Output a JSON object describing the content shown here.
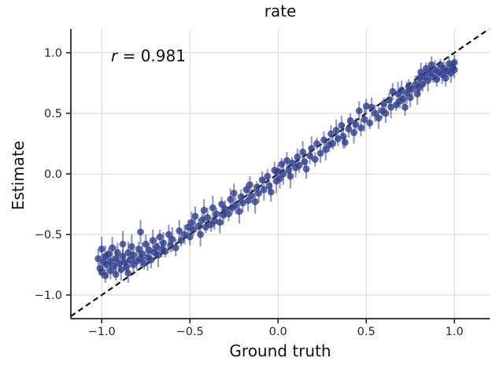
{
  "figure": {
    "title": "rate",
    "xlabel": "Ground truth",
    "ylabel": "Estimate",
    "annotation_var": "r",
    "annotation_rest": " = 0.981"
  },
  "chart_data": {
    "type": "scatter",
    "title": "rate",
    "xlabel": "Ground truth",
    "ylabel": "Estimate",
    "correlation_label": "r = 0.981",
    "r": 0.981,
    "grid": true,
    "legend": false,
    "xlim": [
      -1.175,
      1.2
    ],
    "ylim": [
      -1.195,
      1.195
    ],
    "xticks": {
      "values": [
        -1.0,
        -0.5,
        0.0,
        0.5,
        1.0
      ],
      "labels": [
        "−1.0",
        "−0.5",
        "0.0",
        "0.5",
        "1.0"
      ]
    },
    "yticks": {
      "values": [
        -1.0,
        -0.5,
        0.0,
        0.5,
        1.0
      ],
      "labels": [
        "−1.0",
        "−0.5",
        "0.0",
        "0.5",
        "1.0"
      ]
    },
    "identity_line": {
      "style": "dashed",
      "color": "#141414",
      "from": -1.175,
      "to": 1.195
    },
    "marker": {
      "shape": "circle",
      "color": "#2b3a8a",
      "opacity": 0.78,
      "radius": 4.4
    },
    "error_bars": {
      "color": "#2b3a8a",
      "opacity": 0.5,
      "width": 2.2
    },
    "grid_color": "#d9d9d9",
    "spine_color": "#262626",
    "n_points": 176,
    "points": [
      [
        -1.02,
        -0.7,
        0.08
      ],
      [
        -1.01,
        -0.78,
        0.06
      ],
      [
        -1.0,
        -0.62,
        0.1
      ],
      [
        -1.0,
        -0.81,
        0.05
      ],
      [
        -0.99,
        -0.73,
        0.07
      ],
      [
        -0.98,
        -0.68,
        0.09
      ],
      [
        -0.98,
        -0.84,
        0.06
      ],
      [
        -0.97,
        -0.75,
        0.11
      ],
      [
        -0.96,
        -0.66,
        0.05
      ],
      [
        -0.95,
        -0.72,
        0.08
      ],
      [
        -0.95,
        -0.8,
        0.07
      ],
      [
        -0.94,
        -0.61,
        0.09
      ],
      [
        -0.93,
        -0.76,
        0.06
      ],
      [
        -0.92,
        -0.7,
        0.1
      ],
      [
        -0.92,
        -0.83,
        0.05
      ],
      [
        -0.91,
        -0.65,
        0.08
      ],
      [
        -0.9,
        -0.74,
        0.07
      ],
      [
        -0.89,
        -0.79,
        0.09
      ],
      [
        -0.88,
        -0.68,
        0.06
      ],
      [
        -0.88,
        -0.58,
        0.11
      ],
      [
        -0.87,
        -0.73,
        0.07
      ],
      [
        -0.86,
        -0.77,
        0.05
      ],
      [
        -0.85,
        -0.65,
        0.09
      ],
      [
        -0.85,
        -0.82,
        0.08
      ],
      [
        -0.84,
        -0.71,
        0.06
      ],
      [
        -0.83,
        -0.6,
        0.1
      ],
      [
        -0.82,
        -0.75,
        0.07
      ],
      [
        -0.82,
        -0.67,
        0.05
      ],
      [
        -0.8,
        -0.72,
        0.08
      ],
      [
        -0.79,
        -0.62,
        0.06
      ],
      [
        -0.78,
        -0.48,
        0.1
      ],
      [
        -0.78,
        -0.7,
        0.07
      ],
      [
        -0.77,
        -0.66,
        0.09
      ],
      [
        -0.76,
        -0.74,
        0.05
      ],
      [
        -0.75,
        -0.58,
        0.08
      ],
      [
        -0.74,
        -0.69,
        0.11
      ],
      [
        -0.73,
        -0.63,
        0.06
      ],
      [
        -0.72,
        -0.71,
        0.07
      ],
      [
        -0.71,
        -0.55,
        0.09
      ],
      [
        -0.7,
        -0.65,
        0.05
      ],
      [
        -0.69,
        -0.6,
        0.08
      ],
      [
        -0.68,
        -0.67,
        0.1
      ],
      [
        -0.67,
        -0.52,
        0.06
      ],
      [
        -0.66,
        -0.62,
        0.07
      ],
      [
        -0.65,
        -0.57,
        0.09
      ],
      [
        -0.64,
        -0.64,
        0.05
      ],
      [
        -0.62,
        -0.5,
        0.08
      ],
      [
        -0.61,
        -0.59,
        0.06
      ],
      [
        -0.6,
        -0.54,
        0.1
      ],
      [
        -0.58,
        -0.61,
        0.07
      ],
      [
        -0.56,
        -0.47,
        0.09
      ],
      [
        -0.55,
        -0.55,
        0.05
      ],
      [
        -0.53,
        -0.5,
        0.08
      ],
      [
        -0.51,
        -0.44,
        0.06
      ],
      [
        -0.5,
        -0.52,
        0.07
      ],
      [
        -0.49,
        -0.4,
        0.09
      ],
      [
        -0.48,
        -0.46,
        0.05
      ],
      [
        -0.47,
        -0.35,
        0.08
      ],
      [
        -0.45,
        -0.43,
        0.06
      ],
      [
        -0.44,
        -0.5,
        0.1
      ],
      [
        -0.43,
        -0.38,
        0.07
      ],
      [
        -0.42,
        -0.3,
        0.09
      ],
      [
        -0.41,
        -0.44,
        0.05
      ],
      [
        -0.4,
        -0.36,
        0.08
      ],
      [
        -0.38,
        -0.42,
        0.06
      ],
      [
        -0.37,
        -0.28,
        0.1
      ],
      [
        -0.36,
        -0.39,
        0.07
      ],
      [
        -0.35,
        -0.33,
        0.05
      ],
      [
        -0.33,
        -0.4,
        0.09
      ],
      [
        -0.32,
        -0.25,
        0.06
      ],
      [
        -0.31,
        -0.34,
        0.08
      ],
      [
        -0.3,
        -0.29,
        0.07
      ],
      [
        -0.28,
        -0.33,
        0.06
      ],
      [
        -0.27,
        -0.21,
        0.09
      ],
      [
        -0.26,
        -0.28,
        0.05
      ],
      [
        -0.25,
        -0.16,
        0.08
      ],
      [
        -0.24,
        -0.26,
        0.07
      ],
      [
        -0.22,
        -0.31,
        0.1
      ],
      [
        -0.21,
        -0.19,
        0.06
      ],
      [
        -0.2,
        -0.24,
        0.08
      ],
      [
        -0.18,
        -0.13,
        0.05
      ],
      [
        -0.17,
        -0.22,
        0.09
      ],
      [
        -0.16,
        -0.09,
        0.07
      ],
      [
        -0.15,
        -0.18,
        0.06
      ],
      [
        -0.13,
        -0.23,
        0.1
      ],
      [
        -0.12,
        -0.11,
        0.05
      ],
      [
        -0.11,
        -0.16,
        0.08
      ],
      [
        -0.09,
        -0.05,
        0.07
      ],
      [
        -0.08,
        -0.13,
        0.09
      ],
      [
        -0.06,
        -0.02,
        0.06
      ],
      [
        -0.05,
        -0.1,
        0.05
      ],
      [
        -0.04,
        -0.15,
        0.08
      ],
      [
        -0.02,
        0.03,
        0.07
      ],
      [
        -0.01,
        -0.06,
        0.1
      ],
      [
        0.0,
        0.02,
        0.06
      ],
      [
        0.01,
        -0.04,
        0.08
      ],
      [
        0.02,
        0.08,
        0.05
      ],
      [
        0.03,
        0.0,
        0.09
      ],
      [
        0.05,
        0.11,
        0.07
      ],
      [
        0.06,
        0.03,
        0.06
      ],
      [
        0.07,
        -0.02,
        0.1
      ],
      [
        0.08,
        0.09,
        0.05
      ],
      [
        0.1,
        0.05,
        0.08
      ],
      [
        0.11,
        0.14,
        0.07
      ],
      [
        0.12,
        0.07,
        0.06
      ],
      [
        0.14,
        0.18,
        0.09
      ],
      [
        0.15,
        0.1,
        0.05
      ],
      [
        0.16,
        0.04,
        0.08
      ],
      [
        0.18,
        0.15,
        0.07
      ],
      [
        0.19,
        0.21,
        0.1
      ],
      [
        0.21,
        0.12,
        0.06
      ],
      [
        0.22,
        0.25,
        0.05
      ],
      [
        0.24,
        0.17,
        0.08
      ],
      [
        0.26,
        0.28,
        0.07
      ],
      [
        0.27,
        0.2,
        0.09
      ],
      [
        0.29,
        0.24,
        0.06
      ],
      [
        0.3,
        0.33,
        0.07
      ],
      [
        0.31,
        0.25,
        0.05
      ],
      [
        0.33,
        0.36,
        0.09
      ],
      [
        0.34,
        0.29,
        0.06
      ],
      [
        0.36,
        0.4,
        0.08
      ],
      [
        0.37,
        0.31,
        0.1
      ],
      [
        0.38,
        0.26,
        0.05
      ],
      [
        0.4,
        0.37,
        0.07
      ],
      [
        0.41,
        0.44,
        0.06
      ],
      [
        0.43,
        0.34,
        0.09
      ],
      [
        0.44,
        0.41,
        0.05
      ],
      [
        0.46,
        0.52,
        0.08
      ],
      [
        0.47,
        0.38,
        0.07
      ],
      [
        0.49,
        0.45,
        0.1
      ],
      [
        0.5,
        0.56,
        0.06
      ],
      [
        0.52,
        0.42,
        0.05
      ],
      [
        0.53,
        0.55,
        0.08
      ],
      [
        0.55,
        0.5,
        0.07
      ],
      [
        0.57,
        0.46,
        0.09
      ],
      [
        0.59,
        0.52,
        0.06
      ],
      [
        0.6,
        0.58,
        0.05
      ],
      [
        0.61,
        0.5,
        0.08
      ],
      [
        0.63,
        0.61,
        0.06
      ],
      [
        0.64,
        0.55,
        0.09
      ],
      [
        0.65,
        0.68,
        0.07
      ],
      [
        0.67,
        0.57,
        0.05
      ],
      [
        0.68,
        0.66,
        0.1
      ],
      [
        0.69,
        0.6,
        0.06
      ],
      [
        0.7,
        0.69,
        0.08
      ],
      [
        0.71,
        0.62,
        0.05
      ],
      [
        0.72,
        0.55,
        0.07
      ],
      [
        0.73,
        0.67,
        0.09
      ],
      [
        0.74,
        0.72,
        0.06
      ],
      [
        0.75,
        0.63,
        0.08
      ],
      [
        0.76,
        0.7,
        0.05
      ],
      [
        0.78,
        0.74,
        0.07
      ],
      [
        0.79,
        0.66,
        0.09
      ],
      [
        0.8,
        0.71,
        0.06
      ],
      [
        0.8,
        0.79,
        0.05
      ],
      [
        0.81,
        0.84,
        0.08
      ],
      [
        0.82,
        0.74,
        0.06
      ],
      [
        0.83,
        0.8,
        0.07
      ],
      [
        0.84,
        0.87,
        0.05
      ],
      [
        0.85,
        0.77,
        0.09
      ],
      [
        0.86,
        0.83,
        0.06
      ],
      [
        0.87,
        0.9,
        0.07
      ],
      [
        0.88,
        0.8,
        0.05
      ],
      [
        0.89,
        0.86,
        0.08
      ],
      [
        0.9,
        0.78,
        0.06
      ],
      [
        0.91,
        0.84,
        0.07
      ],
      [
        0.92,
        0.9,
        0.05
      ],
      [
        0.93,
        0.82,
        0.08
      ],
      [
        0.94,
        0.87,
        0.06
      ],
      [
        0.95,
        0.79,
        0.07
      ],
      [
        0.96,
        0.85,
        0.05
      ],
      [
        0.97,
        0.91,
        0.06
      ],
      [
        0.98,
        0.83,
        0.08
      ],
      [
        0.99,
        0.88,
        0.05
      ],
      [
        1.0,
        0.86,
        0.07
      ],
      [
        1.0,
        0.92,
        0.06
      ]
    ]
  }
}
